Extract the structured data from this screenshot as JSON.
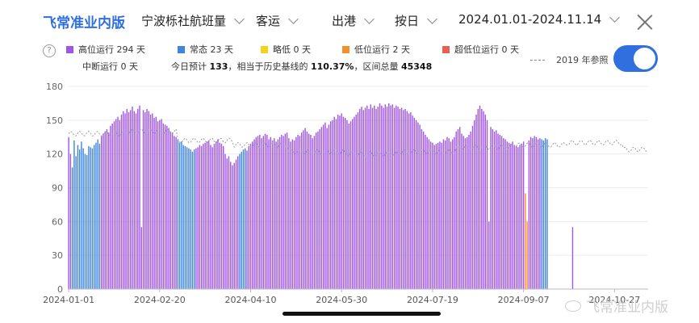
{
  "header": {
    "brand": "飞常准业内版",
    "route_select": "宁波栎社航班量",
    "type_select": "客运",
    "direction_select": "出港",
    "granularity_select": "按日",
    "date_range_select": "2024.01.01-2024.11.14"
  },
  "legend": [
    {
      "label": "高位运行 294 天",
      "color": "#9f55e6"
    },
    {
      "label": "常态 23 天",
      "color": "#3f84e0"
    },
    {
      "label": "略低 0 天",
      "color": "#f7d21b"
    },
    {
      "label": "低位运行 2 天",
      "color": "#f2912b"
    },
    {
      "label": "超低位运行 0 天",
      "color": "#e8604f"
    }
  ],
  "interrupted": "中断运行 0 天",
  "summary": {
    "today_label": "今日预计",
    "today_value": "133",
    "sep": "，",
    "ratio_label": "相当于历史基线的",
    "ratio_value": "110.37%",
    "total_label": "，区间总量",
    "total_value": "45348"
  },
  "reference": {
    "label": "2019 年参照",
    "enabled": true
  },
  "watermark": "飞常准业内版",
  "chart_data": {
    "type": "bar",
    "ylim": [
      0,
      180
    ],
    "yticks": [
      0,
      30,
      60,
      90,
      120,
      150,
      180
    ],
    "xtick_labels": [
      "2024-01-01",
      "2024-02-20",
      "2024-04-10",
      "2024-05-30",
      "2024-07-19",
      "2024-09-07",
      "2024-10-27"
    ],
    "x_start": "2024-01-01",
    "x_end": "2024-11-14",
    "colors": {
      "high": "#9f55e6",
      "normal": "#3f84e0",
      "slightly_low": "#f7d21b",
      "low": "#f2912b",
      "very_low": "#e8604f",
      "reference": "#9a9a9a"
    },
    "series": [
      {
        "name": "daily_flights",
        "segments": [
          {
            "from": "2024-01-01",
            "values": [
              135,
              120,
              108,
              132,
              118,
              128,
              124,
              131,
              125,
              120,
              119,
              127,
              126,
              125,
              128,
              130,
              133,
              129,
              136,
              138,
              140,
              142,
              139,
              145,
              147,
              149,
              151,
              153,
              150,
              155,
              158,
              156,
              160,
              157,
              159,
              162,
              158,
              156,
              160,
              163,
              161,
              159,
              157,
              160,
              158,
              155,
              156,
              152,
              153,
              149,
              150,
              151,
              147,
              146,
              145,
              143,
              140,
              139,
              136,
              135,
              133,
              130,
              131,
              128,
              127,
              126,
              125,
              124,
              122,
              124,
              125,
              126,
              128,
              127,
              129,
              130,
              131,
              132,
              128,
              126,
              129,
              131,
              133,
              130,
              129,
              127,
              120,
              116,
              118,
              113,
              110,
              112,
              115,
              118,
              120,
              122,
              124,
              125,
              123,
              127,
              129,
              131,
              133,
              135,
              136,
              137,
              134,
              136,
              138,
              137,
              133,
              135,
              132,
              134,
              131,
              133,
              135,
              137,
              136,
              138,
              139,
              134,
              131,
              133,
              132,
              135,
              137,
              136,
              139,
              141,
              143,
              140,
              138,
              137,
              134,
              136,
              139,
              140,
              142,
              144,
              146,
              148,
              143,
              146,
              149,
              150,
              153,
              151,
              155,
              154,
              156,
              153,
              152,
              150,
              147,
              149,
              151,
              153,
              155,
              157,
              160,
              162,
              159,
              161,
              163,
              160,
              164,
              161,
              163,
              160,
              162,
              165,
              163,
              161,
              164,
              162,
              165,
              163,
              164,
              161,
              163,
              162,
              160,
              161,
              159,
              160,
              158,
              156,
              157,
              154,
              152,
              150,
              148,
              146,
              142,
              140,
              137,
              135,
              133,
              131,
              130,
              128,
              129,
              130,
              131,
              130,
              133,
              132,
              135,
              134,
              131,
              133,
              135,
              140,
              142,
              144,
              138,
              136,
              134,
              135,
              137,
              140,
              145,
              150,
              155,
              160,
              163,
              160,
              158,
              155,
              150,
              147,
              144,
              142,
              140,
              141,
              138,
              137,
              136,
              134,
              133,
              131,
              130,
              129,
              131,
              128,
              127,
              126,
              128,
              129,
              131,
              130,
              133,
              132,
              135,
              134,
              136,
              135,
              133,
              134,
              133,
              132,
              134,
              133
            ]
          },
          {
            "from": "2024-09-08",
            "values": [
              85,
              60
            ]
          }
        ],
        "normal_day_ranges": [
          [
            "2024-01-03",
            "2024-01-18"
          ],
          [
            "2024-03-01",
            "2024-03-10"
          ],
          [
            "2024-04-04",
            "2024-04-07"
          ],
          [
            "2024-09-17",
            "2024-09-20"
          ],
          [
            "2024-10-28",
            "2024-10-30"
          ]
        ],
        "low_day_ranges": [
          [
            "2024-09-08",
            "2024-09-09"
          ]
        ],
        "dip_days": [
          [
            "2024-02-10",
            55
          ],
          [
            "2024-08-19",
            60
          ],
          [
            "2024-10-04",
            55
          ]
        ]
      },
      {
        "name": "reference_2019",
        "values_per_month": [
          138,
          140,
          132,
          128,
          122,
          120,
          122,
          126,
          128,
          130,
          124
        ]
      }
    ]
  }
}
